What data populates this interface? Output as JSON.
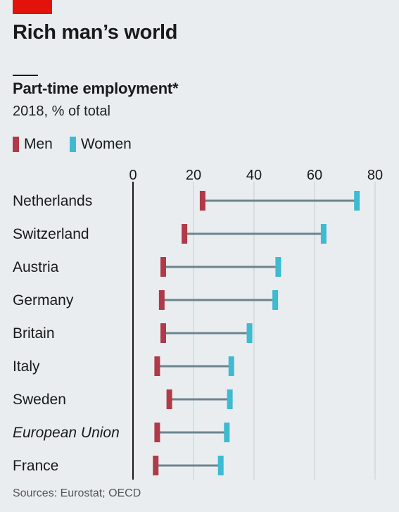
{
  "headline": "Rich man’s world",
  "colors": {
    "men": "#b03a48",
    "women": "#3ebbd0",
    "connector": "#6d848d",
    "grid": "#c4cfd6",
    "accent": "#e3120b"
  },
  "source": "Sources: Eurostat; OECD",
  "chart_data": {
    "type": "dumbbell",
    "title": "Part-time employment*",
    "subtitle": "2018, % of total",
    "legend": [
      {
        "name": "Men",
        "color": "#b03a48"
      },
      {
        "name": "Women",
        "color": "#3ebbd0"
      }
    ],
    "xlim": [
      0,
      80
    ],
    "xticks": [
      0,
      20,
      40,
      60,
      80
    ],
    "grid": true,
    "categories": [
      "Netherlands",
      "Switzerland",
      "Austria",
      "Germany",
      "Britain",
      "Italy",
      "Sweden",
      "European Union",
      "France"
    ],
    "italic_categories": [
      "European Union"
    ],
    "series": [
      {
        "name": "Men",
        "values": [
          23,
          17,
          10,
          9.5,
          10,
          8,
          12,
          8,
          7.5
        ]
      },
      {
        "name": "Women",
        "values": [
          74,
          63,
          48,
          47,
          38.5,
          32.5,
          32,
          31,
          29
        ]
      }
    ]
  }
}
